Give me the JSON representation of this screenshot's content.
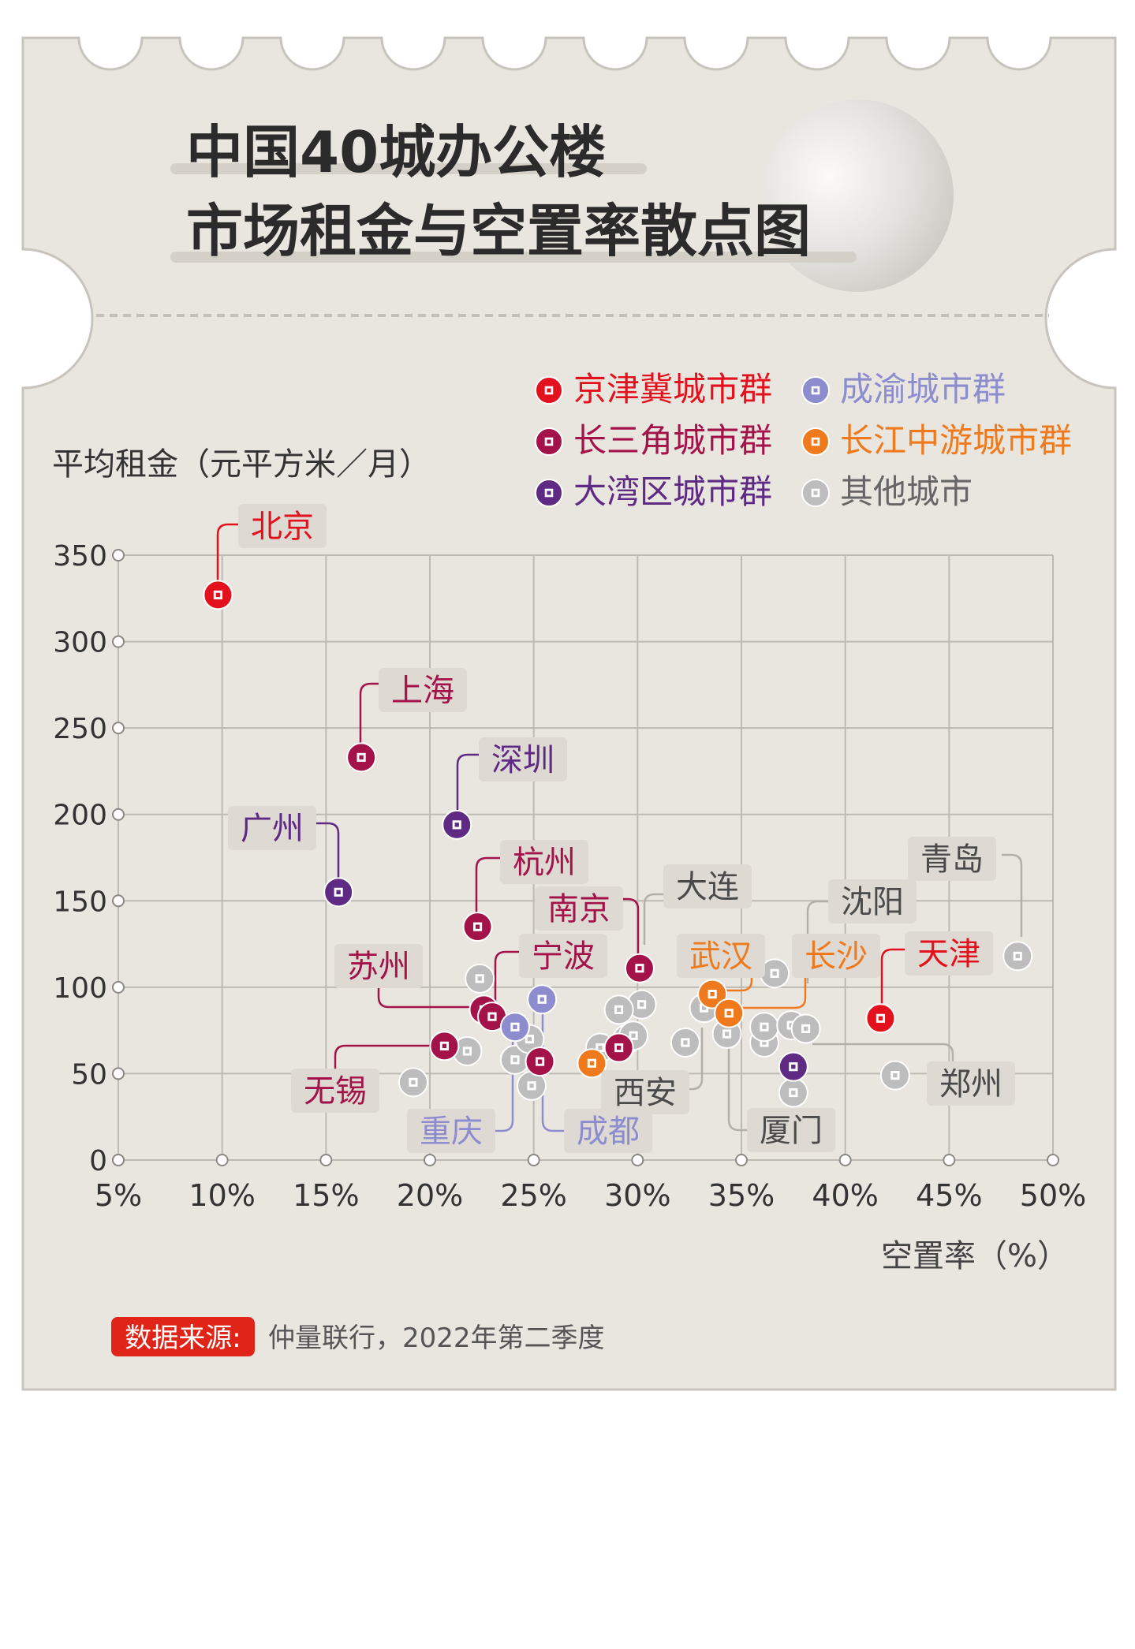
{
  "title_line1": "中国40城办公楼",
  "title_line2": "市场租金与空置率散点图",
  "source": {
    "tag": "数据来源:",
    "text": "仲量联行，2022年第二季度"
  },
  "colors": {
    "background": "#ffffff",
    "card": "#e9e6e0",
    "card_edge": "#c8c4bd",
    "grid": "#bdb9b3",
    "axis_text": "#333333",
    "label_bg": "#dedad3",
    "京津冀城市群": "#e3111d",
    "长三角城市群": "#a3134a",
    "大湾区城市群": "#5e2a84",
    "成渝城市群": "#8d8ccf",
    "长江中游城市群": "#ef7a1e",
    "其他城市": "#bdbdbd"
  },
  "chart_data": {
    "type": "scatter",
    "ylabel": "平均租金（元平方米／月）",
    "xlabel": "空置率（%）",
    "xlim": [
      5,
      50
    ],
    "ylim": [
      0,
      350
    ],
    "xticks": [
      "5%",
      "10%",
      "15%",
      "20%",
      "25%",
      "30%",
      "35%",
      "40%",
      "45%",
      "50%"
    ],
    "yticks": [
      "0",
      "50",
      "100",
      "150",
      "200",
      "250",
      "300",
      "350"
    ],
    "grid": true,
    "legend_position": "top-right",
    "legend": [
      "京津冀城市群",
      "成渝城市群",
      "长三角城市群",
      "长江中游城市群",
      "大湾区城市群",
      "其他城市"
    ],
    "points": [
      {
        "city": "北京",
        "group": "京津冀城市群",
        "x": 9.8,
        "y": 327
      },
      {
        "city": "上海",
        "group": "长三角城市群",
        "x": 16.7,
        "y": 233
      },
      {
        "city": "深圳",
        "group": "大湾区城市群",
        "x": 21.3,
        "y": 194
      },
      {
        "city": "广州",
        "group": "大湾区城市群",
        "x": 15.6,
        "y": 155
      },
      {
        "city": "杭州",
        "group": "长三角城市群",
        "x": 22.3,
        "y": 135
      },
      {
        "city": "南京",
        "group": "长三角城市群",
        "x": 30.1,
        "y": 111
      },
      {
        "city": "苏州",
        "group": "长三角城市群",
        "x": 22.6,
        "y": 87
      },
      {
        "city": "宁波",
        "group": "长三角城市群",
        "x": 23.0,
        "y": 83
      },
      {
        "city": "无锡",
        "group": "长三角城市群",
        "x": 20.7,
        "y": 66
      },
      {
        "city": "重庆",
        "group": "成渝城市群",
        "x": 24.1,
        "y": 77
      },
      {
        "city": "成都",
        "group": "成渝城市群",
        "x": 25.4,
        "y": 93
      },
      {
        "city": "武汉",
        "group": "长江中游城市群",
        "x": 33.6,
        "y": 96
      },
      {
        "city": "长沙",
        "group": "长江中游城市群",
        "x": 34.4,
        "y": 85
      },
      {
        "city": "",
        "group": "长江中游城市群",
        "x": 27.8,
        "y": 56
      },
      {
        "city": "",
        "group": "长三角城市群",
        "x": 25.3,
        "y": 57
      },
      {
        "city": "",
        "group": "长三角城市群",
        "x": 29.1,
        "y": 65
      },
      {
        "city": "",
        "group": "大湾区城市群",
        "x": 37.5,
        "y": 54
      },
      {
        "city": "天津",
        "group": "京津冀城市群",
        "x": 41.7,
        "y": 82
      },
      {
        "city": "大连",
        "group": "其他城市",
        "x": 30.2,
        "y": 90
      },
      {
        "city": "沈阳",
        "group": "其他城市",
        "x": 36.6,
        "y": 108
      },
      {
        "city": "青岛",
        "group": "其他城市",
        "x": 48.3,
        "y": 118
      },
      {
        "city": "西安",
        "group": "其他城市",
        "x": 29.5,
        "y": 70
      },
      {
        "city": "厦门",
        "group": "其他城市",
        "x": 37.5,
        "y": 39
      },
      {
        "city": "郑州",
        "group": "其他城市",
        "x": 42.4,
        "y": 49
      },
      {
        "city": "",
        "group": "其他城市",
        "x": 19.2,
        "y": 45
      },
      {
        "city": "",
        "group": "其他城市",
        "x": 21.8,
        "y": 63
      },
      {
        "city": "",
        "group": "其他城市",
        "x": 22.4,
        "y": 105
      },
      {
        "city": "",
        "group": "其他城市",
        "x": 24.1,
        "y": 58
      },
      {
        "city": "",
        "group": "其他城市",
        "x": 24.9,
        "y": 43
      },
      {
        "city": "",
        "group": "其他城市",
        "x": 24.8,
        "y": 70
      },
      {
        "city": "",
        "group": "其他城市",
        "x": 28.2,
        "y": 65
      },
      {
        "city": "",
        "group": "其他城市",
        "x": 29.1,
        "y": 87
      },
      {
        "city": "",
        "group": "其他城市",
        "x": 29.8,
        "y": 72
      },
      {
        "city": "",
        "group": "其他城市",
        "x": 32.3,
        "y": 68
      },
      {
        "city": "",
        "group": "其他城市",
        "x": 33.2,
        "y": 88
      },
      {
        "city": "",
        "group": "其他城市",
        "x": 34.3,
        "y": 73
      },
      {
        "city": "",
        "group": "其他城市",
        "x": 36.1,
        "y": 68
      },
      {
        "city": "",
        "group": "其他城市",
        "x": 36.1,
        "y": 77
      },
      {
        "city": "",
        "group": "其他城市",
        "x": 37.4,
        "y": 78
      },
      {
        "city": "",
        "group": "其他城市",
        "x": 38.1,
        "y": 76
      }
    ]
  }
}
